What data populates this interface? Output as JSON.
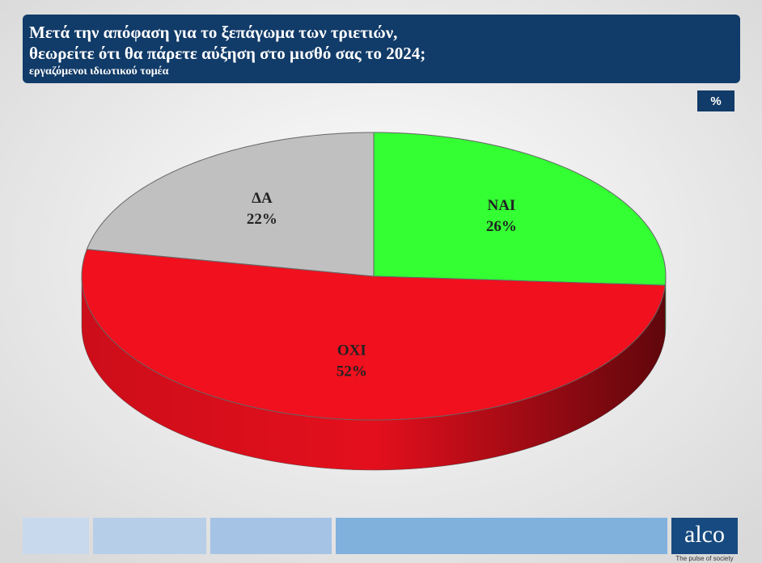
{
  "chart_data": {
    "type": "pie3d",
    "title": [
      "Μετά την απόφαση για το ξεπάγωμα των τριετιών,",
      "θεωρείτε ότι θα πάρετε αύξηση στο μισθό σας το 2024;"
    ],
    "subtitle": "εργαζόμενοι ιδιωτικού τομέα",
    "unit": "%",
    "categories": [
      "ΝΑΙ",
      "ΟΧΙ",
      "ΔΑ"
    ],
    "values": [
      26,
      52,
      22
    ],
    "value_labels": [
      "26%",
      "52%",
      "22%"
    ],
    "colors": [
      "#33ff33",
      "#f0101e",
      "#c0c0c0"
    ]
  },
  "logo": {
    "name": "alco",
    "tagline": "The pulse of society"
  }
}
